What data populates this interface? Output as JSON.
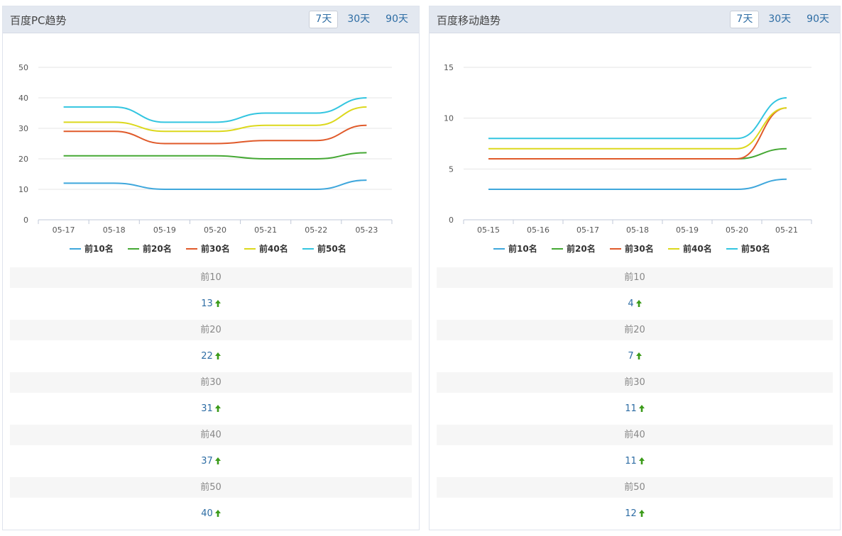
{
  "panels": [
    {
      "title": "百度PC趋势",
      "range_tabs": [
        "7天",
        "30天",
        "90天"
      ],
      "active_tab": 0,
      "chart_data": {
        "type": "line",
        "categories": [
          "05-17",
          "05-18",
          "05-19",
          "05-20",
          "05-21",
          "05-22",
          "05-23"
        ],
        "ylim": [
          0,
          50
        ],
        "yticks": [
          0,
          10,
          20,
          30,
          40,
          50
        ],
        "grid": true,
        "legend_position": "bottom",
        "series": [
          {
            "name": "前10名",
            "color": "#3fa7dc",
            "values": [
              12,
              12,
              10,
              10,
              10,
              10,
              13
            ]
          },
          {
            "name": "前20名",
            "color": "#45a834",
            "values": [
              21,
              21,
              21,
              21,
              20,
              20,
              22
            ]
          },
          {
            "name": "前30名",
            "color": "#e05a2a",
            "values": [
              29,
              29,
              25,
              25,
              26,
              26,
              31
            ]
          },
          {
            "name": "前40名",
            "color": "#dcd81c",
            "values": [
              32,
              32,
              29,
              29,
              31,
              31,
              37
            ]
          },
          {
            "name": "前50名",
            "color": "#33c5e0",
            "values": [
              37,
              37,
              32,
              32,
              35,
              35,
              40
            ]
          }
        ]
      },
      "stats": [
        {
          "label": "前10",
          "value": "13"
        },
        {
          "label": "前20",
          "value": "22"
        },
        {
          "label": "前30",
          "value": "31"
        },
        {
          "label": "前40",
          "value": "37"
        },
        {
          "label": "前50",
          "value": "40"
        }
      ]
    },
    {
      "title": "百度移动趋势",
      "range_tabs": [
        "7天",
        "30天",
        "90天"
      ],
      "active_tab": 0,
      "chart_data": {
        "type": "line",
        "categories": [
          "05-15",
          "05-16",
          "05-17",
          "05-18",
          "05-19",
          "05-20",
          "05-21"
        ],
        "ylim": [
          0,
          15
        ],
        "yticks": [
          0,
          5,
          10,
          15
        ],
        "grid": true,
        "legend_position": "bottom",
        "series": [
          {
            "name": "前10名",
            "color": "#3fa7dc",
            "values": [
              3,
              3,
              3,
              3,
              3,
              3,
              4
            ]
          },
          {
            "name": "前20名",
            "color": "#45a834",
            "values": [
              6,
              6,
              6,
              6,
              6,
              6,
              7
            ]
          },
          {
            "name": "前30名",
            "color": "#e05a2a",
            "values": [
              6,
              6,
              6,
              6,
              6,
              6,
              11
            ]
          },
          {
            "name": "前40名",
            "color": "#dcd81c",
            "values": [
              7,
              7,
              7,
              7,
              7,
              7,
              11
            ]
          },
          {
            "name": "前50名",
            "color": "#33c5e0",
            "values": [
              8,
              8,
              8,
              8,
              8,
              8,
              12
            ]
          }
        ]
      },
      "stats": [
        {
          "label": "前10",
          "value": "4"
        },
        {
          "label": "前20",
          "value": "7"
        },
        {
          "label": "前30",
          "value": "11"
        },
        {
          "label": "前40",
          "value": "11"
        },
        {
          "label": "前50",
          "value": "12"
        }
      ]
    }
  ],
  "trend_icon": "up-arrow-icon",
  "trend_color": "#3c9b1a"
}
